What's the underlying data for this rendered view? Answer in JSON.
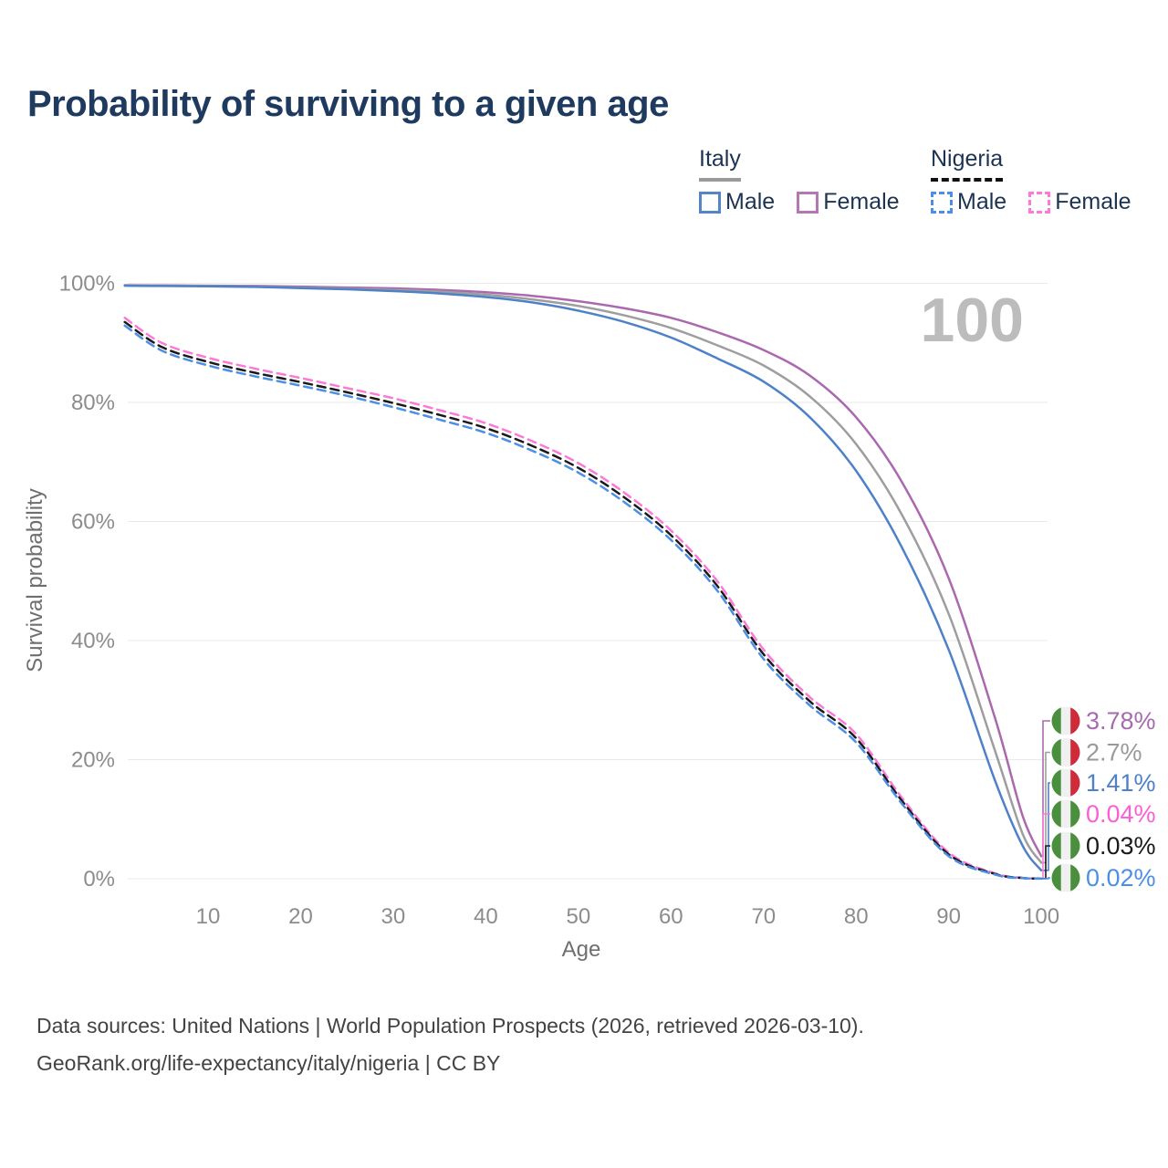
{
  "title": "Probability of surviving to a given age",
  "watermark_age": "100",
  "legend": {
    "groups": [
      {
        "name": "Italy",
        "line_style": "solid",
        "underline_color": "#9a9a9a",
        "items": [
          {
            "label": "Male",
            "color": "#5585c8"
          },
          {
            "label": "Female",
            "color": "#b576b3"
          }
        ]
      },
      {
        "name": "Nigeria",
        "line_style": "dashed",
        "underline_color": "#111111",
        "items": [
          {
            "label": "Male",
            "color": "#4d8fe6"
          },
          {
            "label": "Female",
            "color": "#fb7ad8"
          }
        ]
      }
    ]
  },
  "chart_data": {
    "type": "line",
    "title": "Probability of surviving to a given age",
    "xlabel": "Age",
    "ylabel": "Survival probability",
    "xlim": [
      0,
      101
    ],
    "ylim": [
      0,
      100
    ],
    "grid": true,
    "legend_position": "top-right",
    "x_ticks": [
      10,
      20,
      30,
      40,
      50,
      60,
      70,
      80,
      90,
      100
    ],
    "y_ticks": [
      {
        "label": "0%",
        "value": 0
      },
      {
        "label": "20%",
        "value": 20
      },
      {
        "label": "40%",
        "value": 40
      },
      {
        "label": "60%",
        "value": 60
      },
      {
        "label": "80%",
        "value": 80
      },
      {
        "label": "100%",
        "value": 100
      }
    ],
    "x": [
      1,
      5,
      10,
      15,
      20,
      25,
      30,
      35,
      40,
      45,
      50,
      55,
      60,
      65,
      70,
      75,
      80,
      85,
      90,
      95,
      98,
      100
    ],
    "series": [
      {
        "key": "italy-female",
        "name": "Italy Female",
        "country": "Italy",
        "sex": "Female",
        "color": "#ab68ae",
        "dashed": false,
        "values": [
          99.7,
          99.65,
          99.6,
          99.55,
          99.45,
          99.3,
          99.15,
          98.9,
          98.5,
          97.9,
          97.0,
          95.8,
          94.2,
          91.8,
          88.8,
          84.5,
          77.5,
          66.5,
          50.5,
          27.0,
          10.5,
          3.78
        ],
        "end_label": {
          "text": "3.78%",
          "color": "#a76ab0",
          "flag": "italy"
        }
      },
      {
        "key": "italy-both",
        "name": "Italy Both sexes",
        "country": "Italy",
        "sex": "Both",
        "color": "#9e9e9e",
        "dashed": false,
        "values": [
          99.65,
          99.6,
          99.55,
          99.45,
          99.3,
          99.1,
          98.9,
          98.6,
          98.1,
          97.3,
          96.2,
          94.6,
          92.5,
          89.6,
          86.2,
          81.0,
          73.0,
          61.0,
          44.5,
          21.5,
          7.5,
          2.7
        ],
        "end_label": {
          "text": "2.7%",
          "color": "#9a9a9a",
          "flag": "italy"
        }
      },
      {
        "key": "italy-male",
        "name": "Italy Male",
        "country": "Italy",
        "sex": "Male",
        "color": "#4e81c8",
        "dashed": false,
        "values": [
          99.6,
          99.55,
          99.5,
          99.4,
          99.2,
          99.0,
          98.7,
          98.3,
          97.7,
          96.8,
          95.4,
          93.5,
          90.9,
          87.4,
          83.5,
          77.5,
          68.5,
          55.5,
          38.5,
          16.5,
          5.5,
          1.41
        ],
        "end_label": {
          "text": "1.41%",
          "color": "#4e81c8",
          "flag": "italy"
        }
      },
      {
        "key": "nigeria-female",
        "name": "Nigeria Female",
        "country": "Nigeria",
        "sex": "Female",
        "color": "#fb7ad8",
        "dashed": true,
        "values": [
          94.2,
          90.0,
          87.5,
          85.7,
          84.1,
          82.4,
          80.7,
          78.7,
          76.5,
          73.5,
          69.8,
          64.8,
          58.5,
          50.0,
          38.5,
          30.5,
          24.3,
          13.5,
          4.4,
          0.9,
          0.15,
          0.04
        ],
        "end_label": {
          "text": "0.04%",
          "color": "#fb5fd6",
          "flag": "nigeria"
        }
      },
      {
        "key": "nigeria-both",
        "name": "Nigeria Both sexes",
        "country": "Nigeria",
        "sex": "Both",
        "color": "#1a1a1a",
        "dashed": true,
        "values": [
          93.5,
          89.3,
          86.8,
          85.0,
          83.4,
          81.7,
          79.9,
          77.9,
          75.7,
          72.7,
          69.0,
          64.0,
          57.7,
          49.2,
          37.7,
          29.8,
          23.6,
          13.0,
          4.1,
          0.8,
          0.13,
          0.03
        ],
        "end_label": {
          "text": "0.03%",
          "color": "#1a1a1a",
          "flag": "nigeria"
        }
      },
      {
        "key": "nigeria-male",
        "name": "Nigeria Male",
        "country": "Nigeria",
        "sex": "Male",
        "color": "#4d8fe6",
        "dashed": true,
        "values": [
          92.9,
          88.7,
          86.2,
          84.4,
          82.8,
          81.1,
          79.2,
          77.1,
          74.9,
          71.9,
          68.2,
          63.2,
          56.9,
          48.4,
          36.9,
          29.1,
          22.9,
          12.5,
          3.8,
          0.7,
          0.1,
          0.02
        ],
        "end_label": {
          "text": "0.02%",
          "color": "#4d8fe6",
          "flag": "nigeria"
        }
      }
    ],
    "flag_colors": {
      "italy": [
        "#4a8f3e",
        "#f0f0f0",
        "#cf2b3a"
      ],
      "nigeria": [
        "#4a8f3e",
        "#f0f0f0",
        "#4a8f3e"
      ]
    }
  },
  "footer": {
    "line1": "Data sources: United Nations | World Population Prospects (2026, retrieved 2026-03-10).",
    "line2": "GeoRank.org/life-expectancy/italy/nigeria | CC BY"
  }
}
